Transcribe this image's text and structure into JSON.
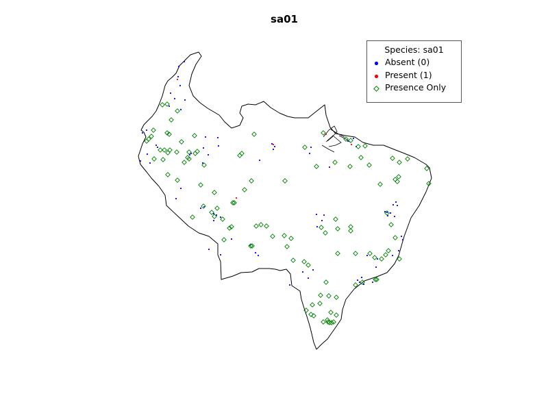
{
  "title": "sa01",
  "legend": {
    "title": "Species: sa01",
    "items": [
      {
        "label": "Absent (0)",
        "marker": "filled-dot",
        "color": "#0000ff"
      },
      {
        "label": "Present (1)",
        "marker": "filled-dot",
        "color": "#ff0000"
      },
      {
        "label": "Presence Only",
        "marker": "open-diamond",
        "color": "#008000"
      }
    ]
  },
  "map": {
    "region": "South America (Amazon / Brazil region)",
    "outline_color": "#000000"
  }
}
